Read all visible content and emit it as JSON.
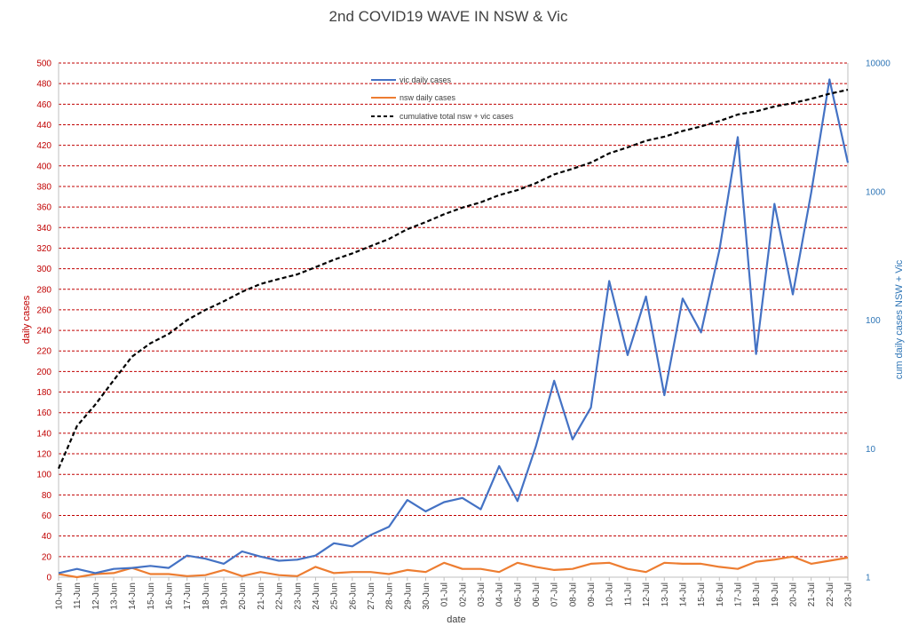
{
  "chart_data": {
    "type": "line",
    "title": "2nd COVID19 WAVE IN NSW & Vic",
    "xlabel": "date",
    "ylabel": "daily cases",
    "y2label": "cum daily cases NSW + Vic",
    "ylim": [
      0,
      500
    ],
    "y_ticks": [
      "0",
      "20",
      "40",
      "60",
      "80",
      "100",
      "120",
      "140",
      "160",
      "180",
      "200",
      "220",
      "240",
      "260",
      "280",
      "300",
      "320",
      "340",
      "360",
      "380",
      "400",
      "420",
      "440",
      "460",
      "480",
      "500"
    ],
    "y2_scale": "log",
    "y2lim": [
      1,
      10000
    ],
    "y2_ticks": [
      "1",
      "10",
      "100",
      "1000",
      "10000"
    ],
    "grid": "horizontal dashed",
    "legend_position": "top-center",
    "categories": [
      "10-Jun",
      "11-Jun",
      "12-Jun",
      "13-Jun",
      "14-Jun",
      "15-Jun",
      "16-Jun",
      "17-Jun",
      "18-Jun",
      "19-Jun",
      "20-Jun",
      "21-Jun",
      "22-Jun",
      "23-Jun",
      "24-Jun",
      "25-Jun",
      "26-Jun",
      "27-Jun",
      "28-Jun",
      "29-Jun",
      "30-Jun",
      "01-Jul",
      "02-Jul",
      "03-Jul",
      "04-Jul",
      "05-Jul",
      "06-Jul",
      "07-Jul",
      "08-Jul",
      "09-Jul",
      "10-Jul",
      "11-Jul",
      "12-Jul",
      "13-Jul",
      "14-Jul",
      "15-Jul",
      "16-Jul",
      "17-Jul",
      "18-Jul",
      "19-Jul",
      "20-Jul",
      "21-Jul",
      "22-Jul",
      "23-Jul"
    ],
    "series": [
      {
        "name": "vic daily cases",
        "axis": "left",
        "color": "#4472c4",
        "style": "solid",
        "values": [
          4,
          8,
          4,
          8,
          9,
          11,
          9,
          21,
          18,
          13,
          25,
          20,
          16,
          17,
          21,
          33,
          30,
          41,
          49,
          75,
          64,
          73,
          77,
          66,
          108,
          74,
          127,
          191,
          134,
          165,
          288,
          216,
          273,
          177,
          271,
          238,
          318,
          428,
          217,
          363,
          275,
          374,
          484,
          403
        ]
      },
      {
        "name": "nsw daily cases",
        "axis": "left",
        "color": "#ed7d31",
        "style": "solid",
        "values": [
          3,
          0,
          3,
          4,
          9,
          3,
          3,
          1,
          2,
          7,
          1,
          5,
          2,
          1,
          10,
          4,
          5,
          5,
          3,
          7,
          5,
          14,
          8,
          8,
          5,
          14,
          10,
          7,
          8,
          13,
          14,
          8,
          5,
          14,
          13,
          13,
          10,
          8,
          15,
          17,
          20,
          13,
          16,
          19
        ]
      },
      {
        "name": "cumulative total nsw + vic cases",
        "axis": "right",
        "color": "#000000",
        "style": "dashed",
        "values": [
          7,
          15,
          22,
          34,
          52,
          66,
          78,
          100,
          120,
          140,
          166,
          191,
          209,
          227,
          258,
          295,
          330,
          376,
          428,
          510,
          579,
          666,
          751,
          825,
          938,
          1026,
          1163,
          1361,
          1503,
          1681,
          1983,
          2207,
          2485,
          2676,
          2960,
          3211,
          3539,
          3975,
          4207,
          4587,
          4882,
          5269,
          5769,
          6191
        ]
      }
    ]
  }
}
